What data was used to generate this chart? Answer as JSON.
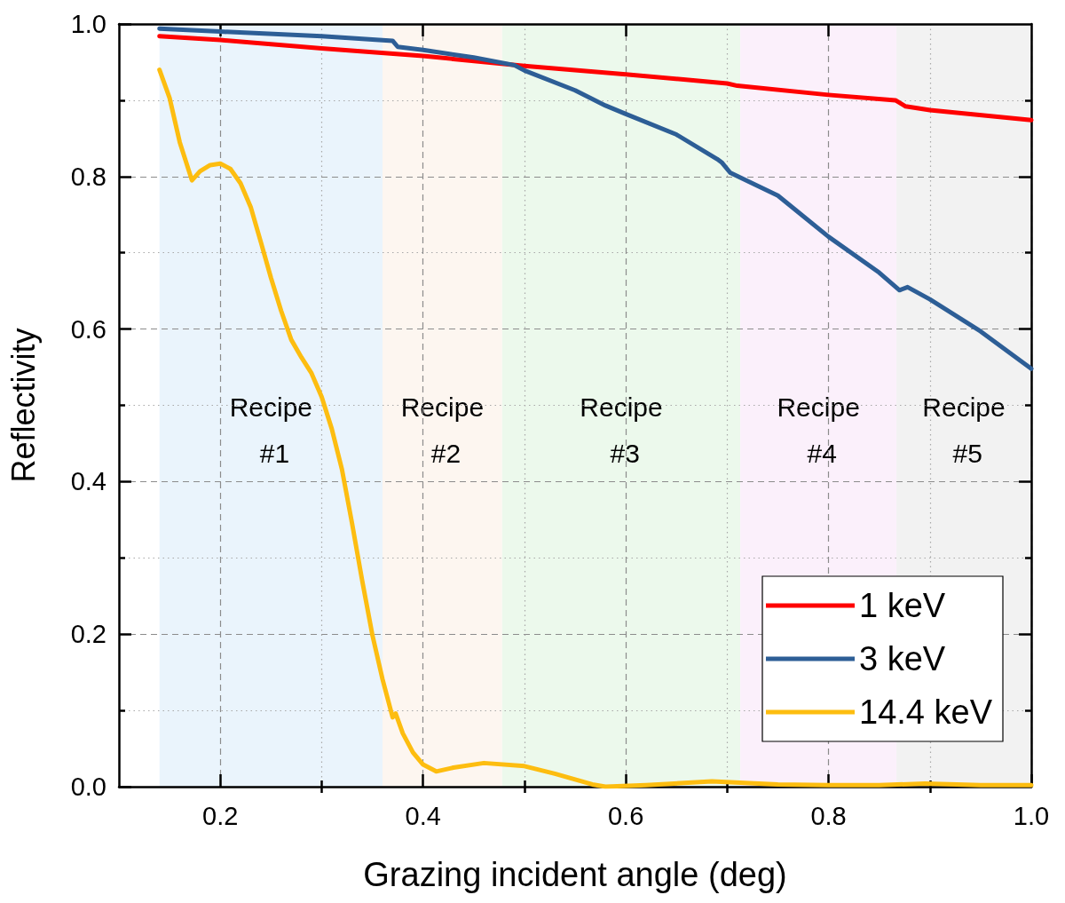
{
  "chart_data": {
    "type": "line",
    "xlabel": "Grazing incident angle (deg)",
    "ylabel": "Reflectivity",
    "xlim": [
      0.1,
      1.0
    ],
    "xticks": [
      0.2,
      {
        "value": 0.3,
        "label": null
      },
      0.4,
      {
        "value": 0.5,
        "label": null
      },
      0.6,
      {
        "value": 0.7,
        "label": null
      },
      0.8,
      {
        "value": 0.9,
        "label": null
      },
      {
        "value": 1.0,
        "label": "1.0"
      }
    ],
    "ylim": [
      0.0,
      1.0
    ],
    "yticks": [
      {
        "value": 0,
        "label": "0.0"
      },
      {
        "value": 0.1,
        "label": null
      },
      0.2,
      {
        "value": 0.3,
        "label": null
      },
      0.4,
      {
        "value": 0.5,
        "label": null
      },
      0.6,
      {
        "value": 0.7,
        "label": null
      },
      0.8,
      {
        "value": 0.9,
        "label": null
      },
      {
        "value": 1.0,
        "label": "1.0"
      }
    ],
    "grid": true,
    "legend": "bottom right",
    "marker": "none",
    "line_style": "solid",
    "bands": [
      {
        "axis": "x",
        "from": 0.14,
        "to": 0.36,
        "label": "Recipe #1",
        "color": "#eaf4fc"
      },
      {
        "axis": "x",
        "from": 0.36,
        "to": 0.478,
        "label": "Recipe #2",
        "color": "#fdf6f0"
      },
      {
        "axis": "x",
        "from": 0.478,
        "to": 0.713,
        "label": "Recipe #3",
        "color": "#ecf9ec"
      },
      {
        "axis": "x",
        "from": 0.713,
        "to": 0.867,
        "label": "Recipe #4",
        "color": "#fbf0fb"
      },
      {
        "axis": "x",
        "from": 0.867,
        "to": 1.0,
        "label": "Recipe #5",
        "color": "#f2f2f2"
      }
    ],
    "series": [
      {
        "name": "1 keV",
        "color": "#ff0000",
        "x": [
          0.14,
          0.2,
          0.3,
          0.4,
          0.5,
          0.6,
          0.7,
          0.71,
          0.8,
          0.866,
          0.876,
          0.9,
          1.0
        ],
        "values": [
          0.984,
          0.979,
          0.968,
          0.958,
          0.945,
          0.934,
          0.922,
          0.919,
          0.907,
          0.9,
          0.892,
          0.887,
          0.874
        ]
      },
      {
        "name": "3 keV",
        "color": "#2d5e96",
        "x": [
          0.14,
          0.2,
          0.3,
          0.37,
          0.375,
          0.4,
          0.45,
          0.49,
          0.5,
          0.55,
          0.58,
          0.6,
          0.65,
          0.69,
          0.695,
          0.703,
          0.75,
          0.8,
          0.85,
          0.87,
          0.878,
          0.9,
          0.95,
          1.0
        ],
        "values": [
          0.994,
          0.99,
          0.984,
          0.978,
          0.97,
          0.966,
          0.956,
          0.946,
          0.939,
          0.913,
          0.893,
          0.882,
          0.855,
          0.823,
          0.818,
          0.805,
          0.775,
          0.721,
          0.674,
          0.651,
          0.655,
          0.639,
          0.597,
          0.548
        ]
      },
      {
        "name": "14.4 keV",
        "color": "#fdbd10",
        "x": [
          0.14,
          0.15,
          0.16,
          0.172,
          0.18,
          0.19,
          0.2,
          0.21,
          0.22,
          0.23,
          0.24,
          0.25,
          0.26,
          0.27,
          0.28,
          0.29,
          0.3,
          0.31,
          0.32,
          0.33,
          0.34,
          0.35,
          0.36,
          0.37,
          0.373,
          0.38,
          0.39,
          0.4,
          0.413,
          0.43,
          0.46,
          0.5,
          0.53,
          0.567,
          0.58,
          0.62,
          0.685,
          0.75,
          0.8,
          0.85,
          0.895,
          0.95,
          1.0
        ],
        "values": [
          0.94,
          0.903,
          0.845,
          0.795,
          0.807,
          0.815,
          0.817,
          0.81,
          0.791,
          0.76,
          0.714,
          0.667,
          0.624,
          0.586,
          0.563,
          0.542,
          0.511,
          0.469,
          0.416,
          0.345,
          0.27,
          0.199,
          0.141,
          0.091,
          0.096,
          0.07,
          0.045,
          0.029,
          0.02,
          0.025,
          0.031,
          0.027,
          0.017,
          0.003,
          0.0,
          0.002,
          0.007,
          0.003,
          0.002,
          0.002,
          0.004,
          0.002,
          0.002
        ]
      }
    ]
  }
}
